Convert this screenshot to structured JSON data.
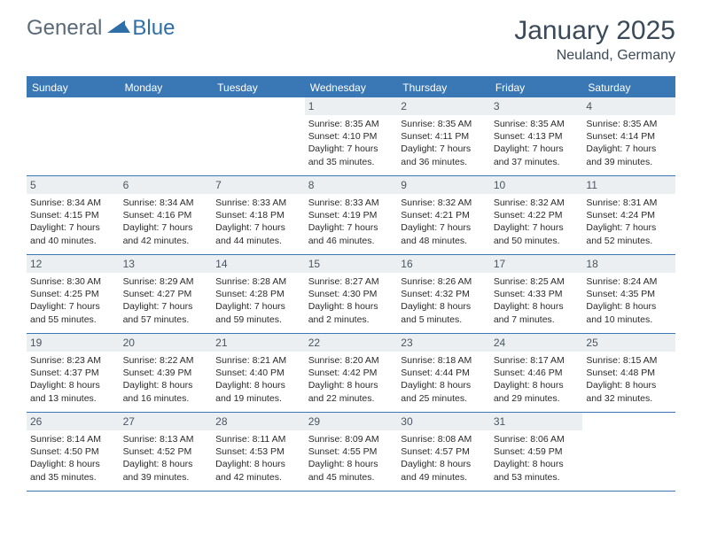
{
  "logo": {
    "text1": "General",
    "text2": "Blue"
  },
  "title": "January 2025",
  "location": "Neuland, Germany",
  "colors": {
    "header_bar": "#3a78b5",
    "header_text": "#ffffff",
    "day_num_bg": "#eceff1",
    "day_num_text": "#4a5560",
    "body_text": "#2a2a2a",
    "title_text": "#3a4a58",
    "logo_general": "#5a6a78",
    "logo_blue": "#2f6fa8"
  },
  "weekdays": [
    "Sunday",
    "Monday",
    "Tuesday",
    "Wednesday",
    "Thursday",
    "Friday",
    "Saturday"
  ],
  "weeks": [
    [
      {
        "n": "",
        "sr": "",
        "ss": "",
        "dl": ""
      },
      {
        "n": "",
        "sr": "",
        "ss": "",
        "dl": ""
      },
      {
        "n": "",
        "sr": "",
        "ss": "",
        "dl": ""
      },
      {
        "n": "1",
        "sr": "Sunrise: 8:35 AM",
        "ss": "Sunset: 4:10 PM",
        "dl": "Daylight: 7 hours and 35 minutes."
      },
      {
        "n": "2",
        "sr": "Sunrise: 8:35 AM",
        "ss": "Sunset: 4:11 PM",
        "dl": "Daylight: 7 hours and 36 minutes."
      },
      {
        "n": "3",
        "sr": "Sunrise: 8:35 AM",
        "ss": "Sunset: 4:13 PM",
        "dl": "Daylight: 7 hours and 37 minutes."
      },
      {
        "n": "4",
        "sr": "Sunrise: 8:35 AM",
        "ss": "Sunset: 4:14 PM",
        "dl": "Daylight: 7 hours and 39 minutes."
      }
    ],
    [
      {
        "n": "5",
        "sr": "Sunrise: 8:34 AM",
        "ss": "Sunset: 4:15 PM",
        "dl": "Daylight: 7 hours and 40 minutes."
      },
      {
        "n": "6",
        "sr": "Sunrise: 8:34 AM",
        "ss": "Sunset: 4:16 PM",
        "dl": "Daylight: 7 hours and 42 minutes."
      },
      {
        "n": "7",
        "sr": "Sunrise: 8:33 AM",
        "ss": "Sunset: 4:18 PM",
        "dl": "Daylight: 7 hours and 44 minutes."
      },
      {
        "n": "8",
        "sr": "Sunrise: 8:33 AM",
        "ss": "Sunset: 4:19 PM",
        "dl": "Daylight: 7 hours and 46 minutes."
      },
      {
        "n": "9",
        "sr": "Sunrise: 8:32 AM",
        "ss": "Sunset: 4:21 PM",
        "dl": "Daylight: 7 hours and 48 minutes."
      },
      {
        "n": "10",
        "sr": "Sunrise: 8:32 AM",
        "ss": "Sunset: 4:22 PM",
        "dl": "Daylight: 7 hours and 50 minutes."
      },
      {
        "n": "11",
        "sr": "Sunrise: 8:31 AM",
        "ss": "Sunset: 4:24 PM",
        "dl": "Daylight: 7 hours and 52 minutes."
      }
    ],
    [
      {
        "n": "12",
        "sr": "Sunrise: 8:30 AM",
        "ss": "Sunset: 4:25 PM",
        "dl": "Daylight: 7 hours and 55 minutes."
      },
      {
        "n": "13",
        "sr": "Sunrise: 8:29 AM",
        "ss": "Sunset: 4:27 PM",
        "dl": "Daylight: 7 hours and 57 minutes."
      },
      {
        "n": "14",
        "sr": "Sunrise: 8:28 AM",
        "ss": "Sunset: 4:28 PM",
        "dl": "Daylight: 7 hours and 59 minutes."
      },
      {
        "n": "15",
        "sr": "Sunrise: 8:27 AM",
        "ss": "Sunset: 4:30 PM",
        "dl": "Daylight: 8 hours and 2 minutes."
      },
      {
        "n": "16",
        "sr": "Sunrise: 8:26 AM",
        "ss": "Sunset: 4:32 PM",
        "dl": "Daylight: 8 hours and 5 minutes."
      },
      {
        "n": "17",
        "sr": "Sunrise: 8:25 AM",
        "ss": "Sunset: 4:33 PM",
        "dl": "Daylight: 8 hours and 7 minutes."
      },
      {
        "n": "18",
        "sr": "Sunrise: 8:24 AM",
        "ss": "Sunset: 4:35 PM",
        "dl": "Daylight: 8 hours and 10 minutes."
      }
    ],
    [
      {
        "n": "19",
        "sr": "Sunrise: 8:23 AM",
        "ss": "Sunset: 4:37 PM",
        "dl": "Daylight: 8 hours and 13 minutes."
      },
      {
        "n": "20",
        "sr": "Sunrise: 8:22 AM",
        "ss": "Sunset: 4:39 PM",
        "dl": "Daylight: 8 hours and 16 minutes."
      },
      {
        "n": "21",
        "sr": "Sunrise: 8:21 AM",
        "ss": "Sunset: 4:40 PM",
        "dl": "Daylight: 8 hours and 19 minutes."
      },
      {
        "n": "22",
        "sr": "Sunrise: 8:20 AM",
        "ss": "Sunset: 4:42 PM",
        "dl": "Daylight: 8 hours and 22 minutes."
      },
      {
        "n": "23",
        "sr": "Sunrise: 8:18 AM",
        "ss": "Sunset: 4:44 PM",
        "dl": "Daylight: 8 hours and 25 minutes."
      },
      {
        "n": "24",
        "sr": "Sunrise: 8:17 AM",
        "ss": "Sunset: 4:46 PM",
        "dl": "Daylight: 8 hours and 29 minutes."
      },
      {
        "n": "25",
        "sr": "Sunrise: 8:15 AM",
        "ss": "Sunset: 4:48 PM",
        "dl": "Daylight: 8 hours and 32 minutes."
      }
    ],
    [
      {
        "n": "26",
        "sr": "Sunrise: 8:14 AM",
        "ss": "Sunset: 4:50 PM",
        "dl": "Daylight: 8 hours and 35 minutes."
      },
      {
        "n": "27",
        "sr": "Sunrise: 8:13 AM",
        "ss": "Sunset: 4:52 PM",
        "dl": "Daylight: 8 hours and 39 minutes."
      },
      {
        "n": "28",
        "sr": "Sunrise: 8:11 AM",
        "ss": "Sunset: 4:53 PM",
        "dl": "Daylight: 8 hours and 42 minutes."
      },
      {
        "n": "29",
        "sr": "Sunrise: 8:09 AM",
        "ss": "Sunset: 4:55 PM",
        "dl": "Daylight: 8 hours and 45 minutes."
      },
      {
        "n": "30",
        "sr": "Sunrise: 8:08 AM",
        "ss": "Sunset: 4:57 PM",
        "dl": "Daylight: 8 hours and 49 minutes."
      },
      {
        "n": "31",
        "sr": "Sunrise: 8:06 AM",
        "ss": "Sunset: 4:59 PM",
        "dl": "Daylight: 8 hours and 53 minutes."
      },
      {
        "n": "",
        "sr": "",
        "ss": "",
        "dl": ""
      }
    ]
  ]
}
